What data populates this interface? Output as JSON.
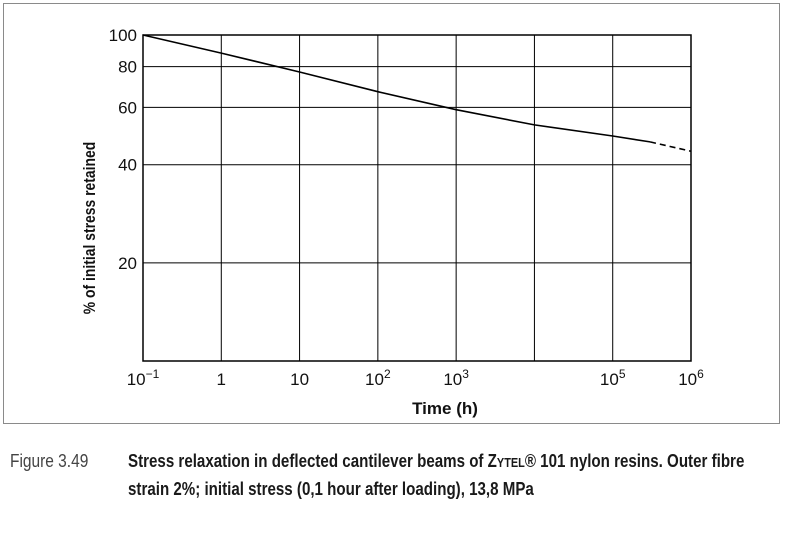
{
  "chart_data": {
    "type": "line",
    "title": "",
    "xlabel": "Time (h)",
    "ylabel": "% of initial stress retained",
    "x_scale": "log",
    "y_scale": "log",
    "xlim": [
      0.1,
      1000000
    ],
    "ylim": [
      10,
      100
    ],
    "x_ticks": [
      {
        "value": 0.1,
        "base": "10",
        "exp": "−1"
      },
      {
        "value": 1,
        "base": "1",
        "exp": ""
      },
      {
        "value": 10,
        "base": "10",
        "exp": ""
      },
      {
        "value": 100,
        "base": "10",
        "exp": "2"
      },
      {
        "value": 1000,
        "base": "10",
        "exp": "3"
      },
      {
        "value": 100000,
        "base": "10",
        "exp": "5"
      },
      {
        "value": 1000000,
        "base": "10",
        "exp": "6"
      }
    ],
    "x_gridlines": [
      0.1,
      1,
      10,
      100,
      1000,
      10000,
      100000,
      1000000
    ],
    "y_ticks": [
      {
        "value": 100,
        "label": "100"
      },
      {
        "value": 80,
        "label": "80"
      },
      {
        "value": 60,
        "label": "60"
      },
      {
        "value": 40,
        "label": "40"
      },
      {
        "value": 20,
        "label": "20"
      }
    ],
    "y_gridlines": [
      100,
      80,
      60,
      40,
      20
    ],
    "grid": true,
    "series": [
      {
        "style": "solid",
        "color": "#000000",
        "x": [
          0.1,
          1,
          10,
          100,
          1000,
          10000,
          100000,
          300000
        ],
        "y": [
          100,
          88,
          77,
          67,
          59,
          53,
          49,
          47
        ]
      },
      {
        "style": "dashed",
        "color": "#000000",
        "x": [
          300000,
          1000000
        ],
        "y": [
          47,
          44
        ]
      }
    ]
  },
  "caption": {
    "number": "Figure 3.49",
    "text_before": "Stress relaxation in deflected cantilever beams of Z",
    "smallcaps": "YTEL",
    "text_after": "® 101 nylon resins. Outer fibre strain 2%; initial stress (0,1 hour after loading), 13,8 MPa"
  }
}
